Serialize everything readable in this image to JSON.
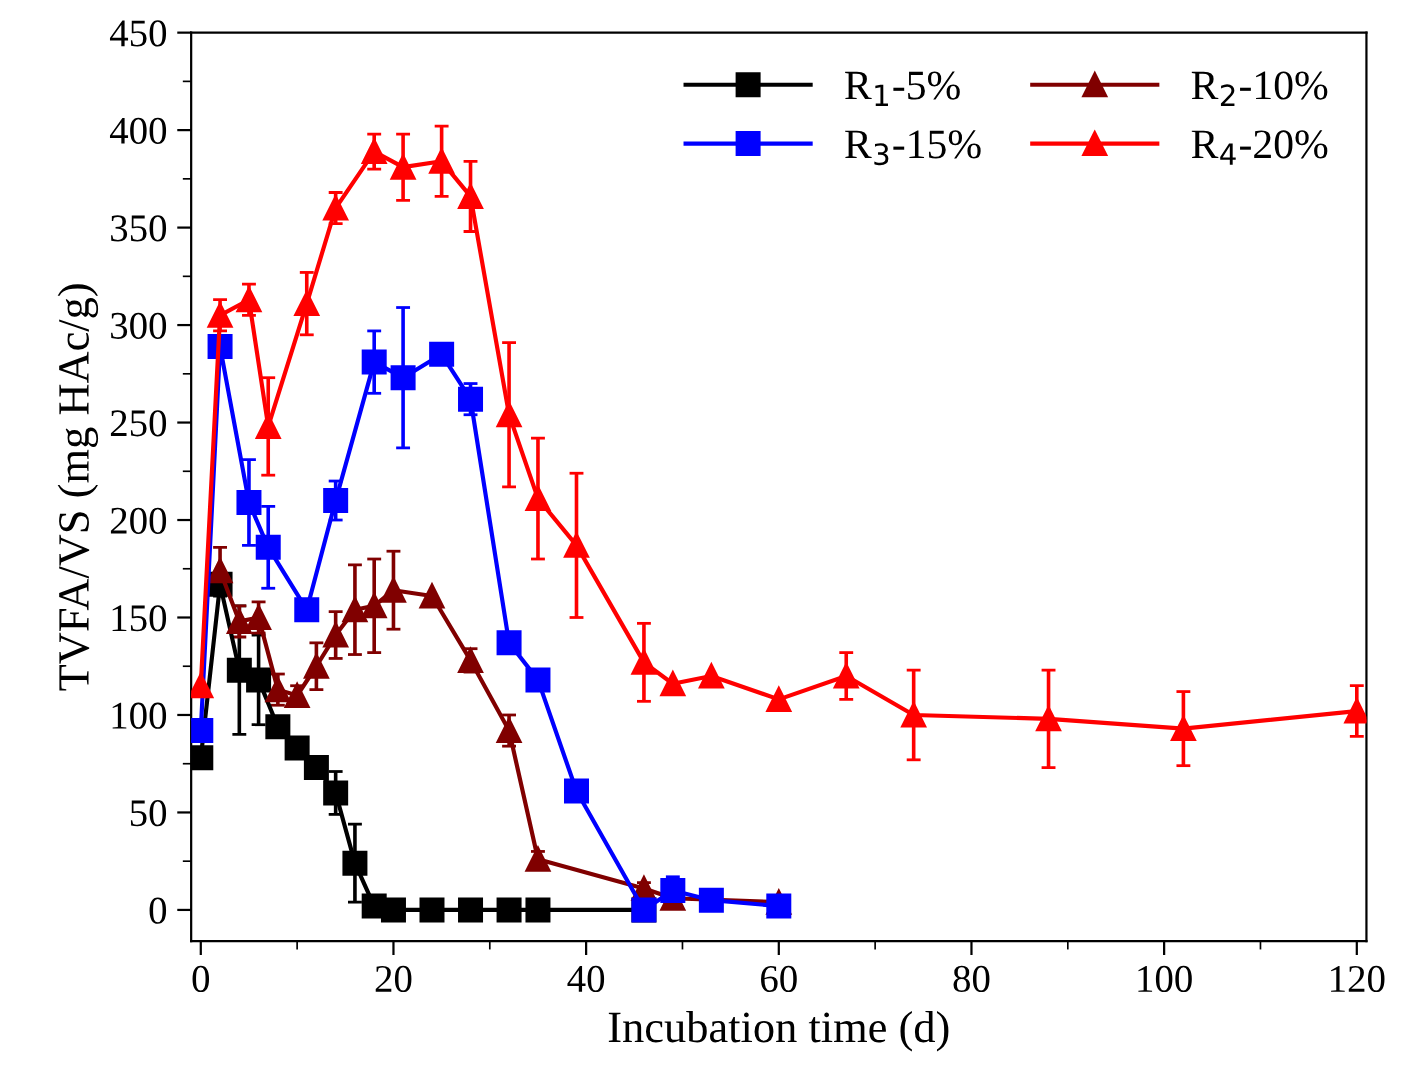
{
  "chart_data": {
    "type": "line",
    "xlabel": "Incubation time (d)",
    "ylabel": "TVFA/VS (mg HAc/g)",
    "xlim": [
      -1,
      121
    ],
    "xticks": [
      0,
      20,
      40,
      60,
      80,
      100,
      120
    ],
    "ylim": [
      -16,
      450
    ],
    "yticks": [
      0,
      50,
      100,
      150,
      200,
      250,
      300,
      350,
      400,
      450
    ],
    "grid": false,
    "legend": "top right",
    "line_style": "solid",
    "series": [
      {
        "name": "R$_{1}$-5%",
        "color": "#000000",
        "marker": "square",
        "x": [
          0,
          2,
          4,
          6,
          8,
          10,
          12,
          14,
          16,
          18,
          20,
          24,
          28,
          32,
          35,
          46
        ],
        "values": [
          78,
          167,
          123,
          118,
          94,
          83,
          73,
          60,
          24,
          2,
          0,
          0,
          0,
          0,
          0,
          0
        ],
        "errors": [
          null,
          6,
          33,
          23,
          5,
          5,
          5,
          11,
          20,
          null,
          null,
          null,
          null,
          null,
          null,
          null
        ]
      },
      {
        "name": "R$_{2}$-10%",
        "color": "#800000",
        "marker": "triangle",
        "x": [
          2,
          4,
          6,
          8,
          10,
          12,
          14,
          16,
          18,
          20,
          24,
          28,
          32,
          35,
          46,
          49,
          60
        ],
        "values": [
          174,
          148,
          150,
          113,
          110,
          125,
          141,
          154,
          156,
          164,
          161,
          128,
          92,
          26,
          11,
          6,
          4
        ],
        "errors": [
          12,
          8,
          8,
          8,
          5,
          12,
          12,
          23,
          24,
          20,
          null,
          6,
          8,
          4,
          3,
          null,
          3
        ]
      },
      {
        "name": "R$_{3}$-15%",
        "color": "#0000ff",
        "marker": "square",
        "x": [
          0,
          2,
          5,
          7,
          11,
          14,
          18,
          21,
          25,
          28,
          32,
          35,
          39,
          46,
          49,
          53,
          60
        ],
        "values": [
          92,
          289,
          209,
          186,
          154,
          210,
          281,
          273,
          285,
          262,
          137,
          118,
          61,
          0,
          10,
          5,
          2
        ],
        "errors": [
          null,
          null,
          22,
          21,
          null,
          10,
          16,
          36,
          4,
          8,
          null,
          null,
          null,
          null,
          7,
          null,
          null
        ]
      },
      {
        "name": "R$_{4}$-20%",
        "color": "#ff0000",
        "marker": "triangle",
        "x": [
          0,
          2,
          5,
          7,
          11,
          14,
          18,
          21,
          25,
          28,
          32,
          35,
          39,
          46,
          49,
          53,
          60,
          67,
          74,
          88,
          102,
          120
        ],
        "values": [
          115,
          305,
          313,
          248,
          311,
          360,
          389,
          381,
          384,
          366,
          254,
          211,
          187,
          127,
          116,
          120,
          108,
          120,
          100,
          98,
          93,
          102
        ],
        "errors": [
          null,
          8,
          8,
          25,
          16,
          8,
          9,
          17,
          18,
          18,
          37,
          31,
          37,
          20,
          null,
          null,
          null,
          12,
          23,
          25,
          19,
          13
        ]
      }
    ]
  }
}
